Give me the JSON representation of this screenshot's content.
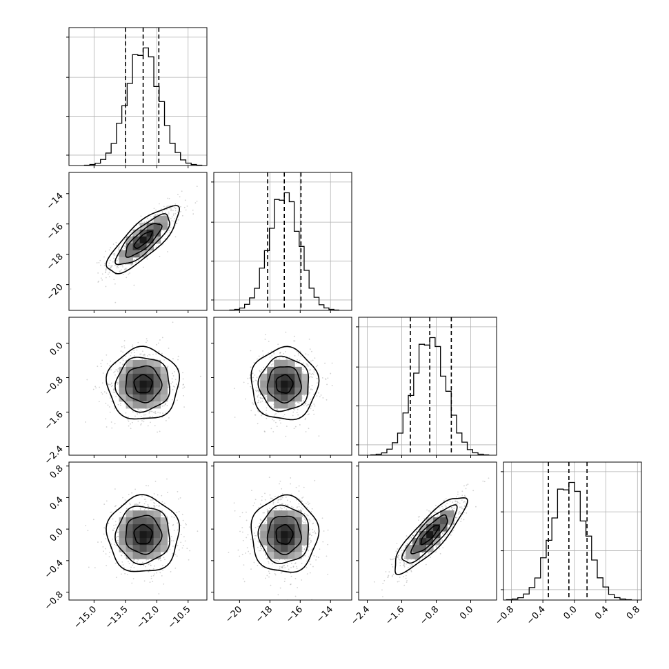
{
  "chart_data": {
    "type": "corner",
    "title": "",
    "grid": true,
    "parameters": [
      {
        "id": "p1",
        "label": "",
        "range": [
          -16.2,
          -9.6
        ],
        "ticks": [
          -15.0,
          -13.5,
          -12.0,
          -10.5
        ],
        "tick_labels": [
          "−15.0",
          "−13.5",
          "−12.0",
          "−10.5"
        ],
        "mean": -12.65,
        "std": 0.78,
        "quantiles": [
          -13.5,
          -12.65,
          -11.9
        ]
      },
      {
        "id": "p2",
        "label": "",
        "range": [
          -21.7,
          -12.6
        ],
        "ticks": [
          -20,
          -18,
          -16,
          -14
        ],
        "tick_labels": [
          "−20",
          "−18",
          "−16",
          "−14"
        ],
        "mean": -17.05,
        "std": 1.0,
        "quantiles": [
          -18.15,
          -17.05,
          -15.95
        ]
      },
      {
        "id": "p3",
        "label": "",
        "range": [
          -2.6,
          0.6
        ],
        "ticks": [
          -2.4,
          -1.6,
          -0.8,
          0.0
        ],
        "tick_labels": [
          "−2.4",
          "−1.6",
          "−0.8",
          "0.0"
        ],
        "mean": -0.95,
        "std": 0.38,
        "quantiles": [
          -1.4,
          -0.95,
          -0.45
        ]
      },
      {
        "id": "p4",
        "label": "",
        "range": [
          -0.9,
          0.85
        ],
        "ticks": [
          -0.8,
          -0.4,
          0.0,
          0.4,
          0.8
        ],
        "tick_labels": [
          "−0.8",
          "−0.4",
          "0.0",
          "0.4",
          "0.8"
        ],
        "mean": -0.07,
        "std": 0.22,
        "quantiles": [
          -0.33,
          -0.07,
          0.16
        ]
      }
    ],
    "correlations": [
      [
        1.0,
        0.8,
        0.0,
        0.0
      ],
      [
        0.8,
        1.0,
        0.0,
        0.0
      ],
      [
        0.0,
        0.0,
        1.0,
        0.85
      ],
      [
        0.0,
        0.0,
        0.85,
        1.0
      ]
    ],
    "histogram_peaks": [
      {
        "param": "p1",
        "peak": -12.6
      },
      {
        "param": "p2",
        "peak": -17.0
      },
      {
        "param": "p3",
        "peak": -0.95
      },
      {
        "param": "p4",
        "peak": -0.07
      }
    ],
    "contour_levels_sigma": [
      0.5,
      1.0,
      1.5,
      2.0
    ]
  }
}
